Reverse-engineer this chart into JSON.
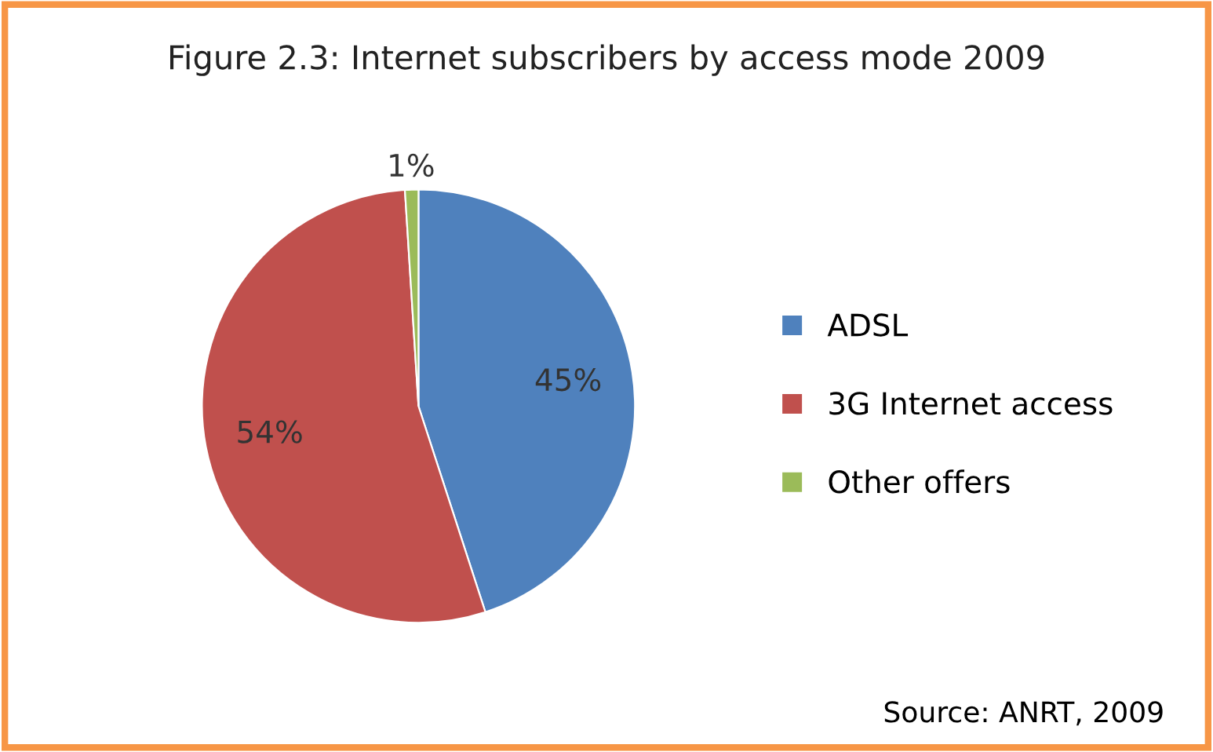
{
  "chart_data": {
    "type": "pie",
    "title": "Figure 2.3: Internet subscribers by access mode 2009",
    "categories": [
      "ADSL",
      "3G Internet access",
      "Other offers"
    ],
    "values": [
      45,
      54,
      1
    ],
    "value_labels": [
      "45%",
      "54%",
      "1%"
    ],
    "colors": [
      "#4f81bd",
      "#c0504d",
      "#9bbb59"
    ],
    "legend": "right",
    "annotations": [
      "Source: ANRT, 2009"
    ]
  }
}
